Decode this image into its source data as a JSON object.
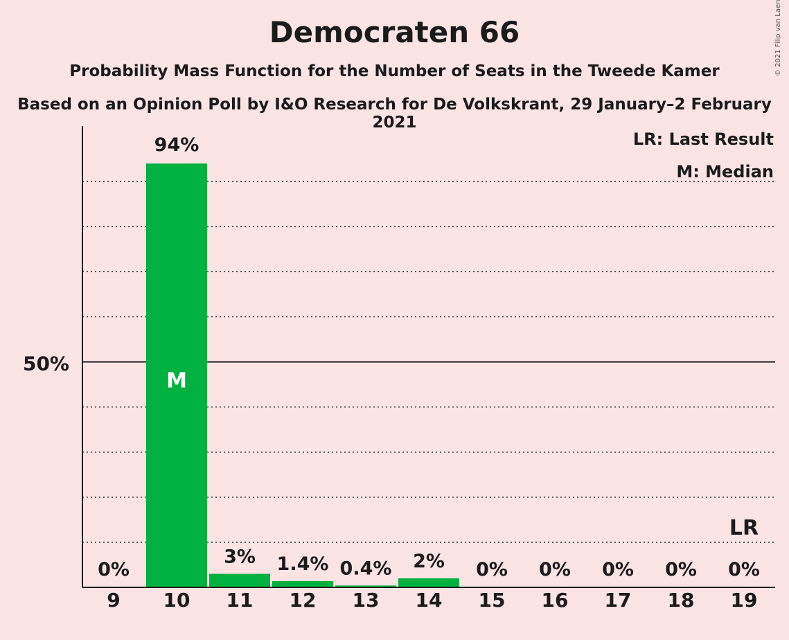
{
  "chart_data": {
    "type": "bar",
    "title": "Democraten 66",
    "subtitle": "Probability Mass Function for the Number of Seats in the Tweede Kamer",
    "subtitle2": "Based on an Opinion Poll by I&O Research for De Volkskrant, 29 January–2 February 2021",
    "copyright": "© 2021 Filip van Laenen",
    "categories": [
      "9",
      "10",
      "11",
      "12",
      "13",
      "14",
      "15",
      "16",
      "17",
      "18",
      "19"
    ],
    "values": [
      0,
      94,
      3,
      1.4,
      0.4,
      2,
      0,
      0,
      0,
      0,
      0
    ],
    "value_labels": [
      "0%",
      "94%",
      "3%",
      "1.4%",
      "0.4%",
      "2%",
      "0%",
      "0%",
      "0%",
      "0%",
      "0%"
    ],
    "ylim": [
      0,
      100
    ],
    "y_major_tick": {
      "value": 50,
      "label": "50%"
    },
    "y_gridlines": [
      10,
      20,
      30,
      40,
      60,
      70,
      80,
      90
    ],
    "median_category": "10",
    "median_marker": "M",
    "last_result_category": "19",
    "last_result_marker": "LR",
    "legend": [
      "LR: Last Result",
      "M: Median"
    ],
    "legend_position": "top-right",
    "bar_color": "#00b140"
  }
}
